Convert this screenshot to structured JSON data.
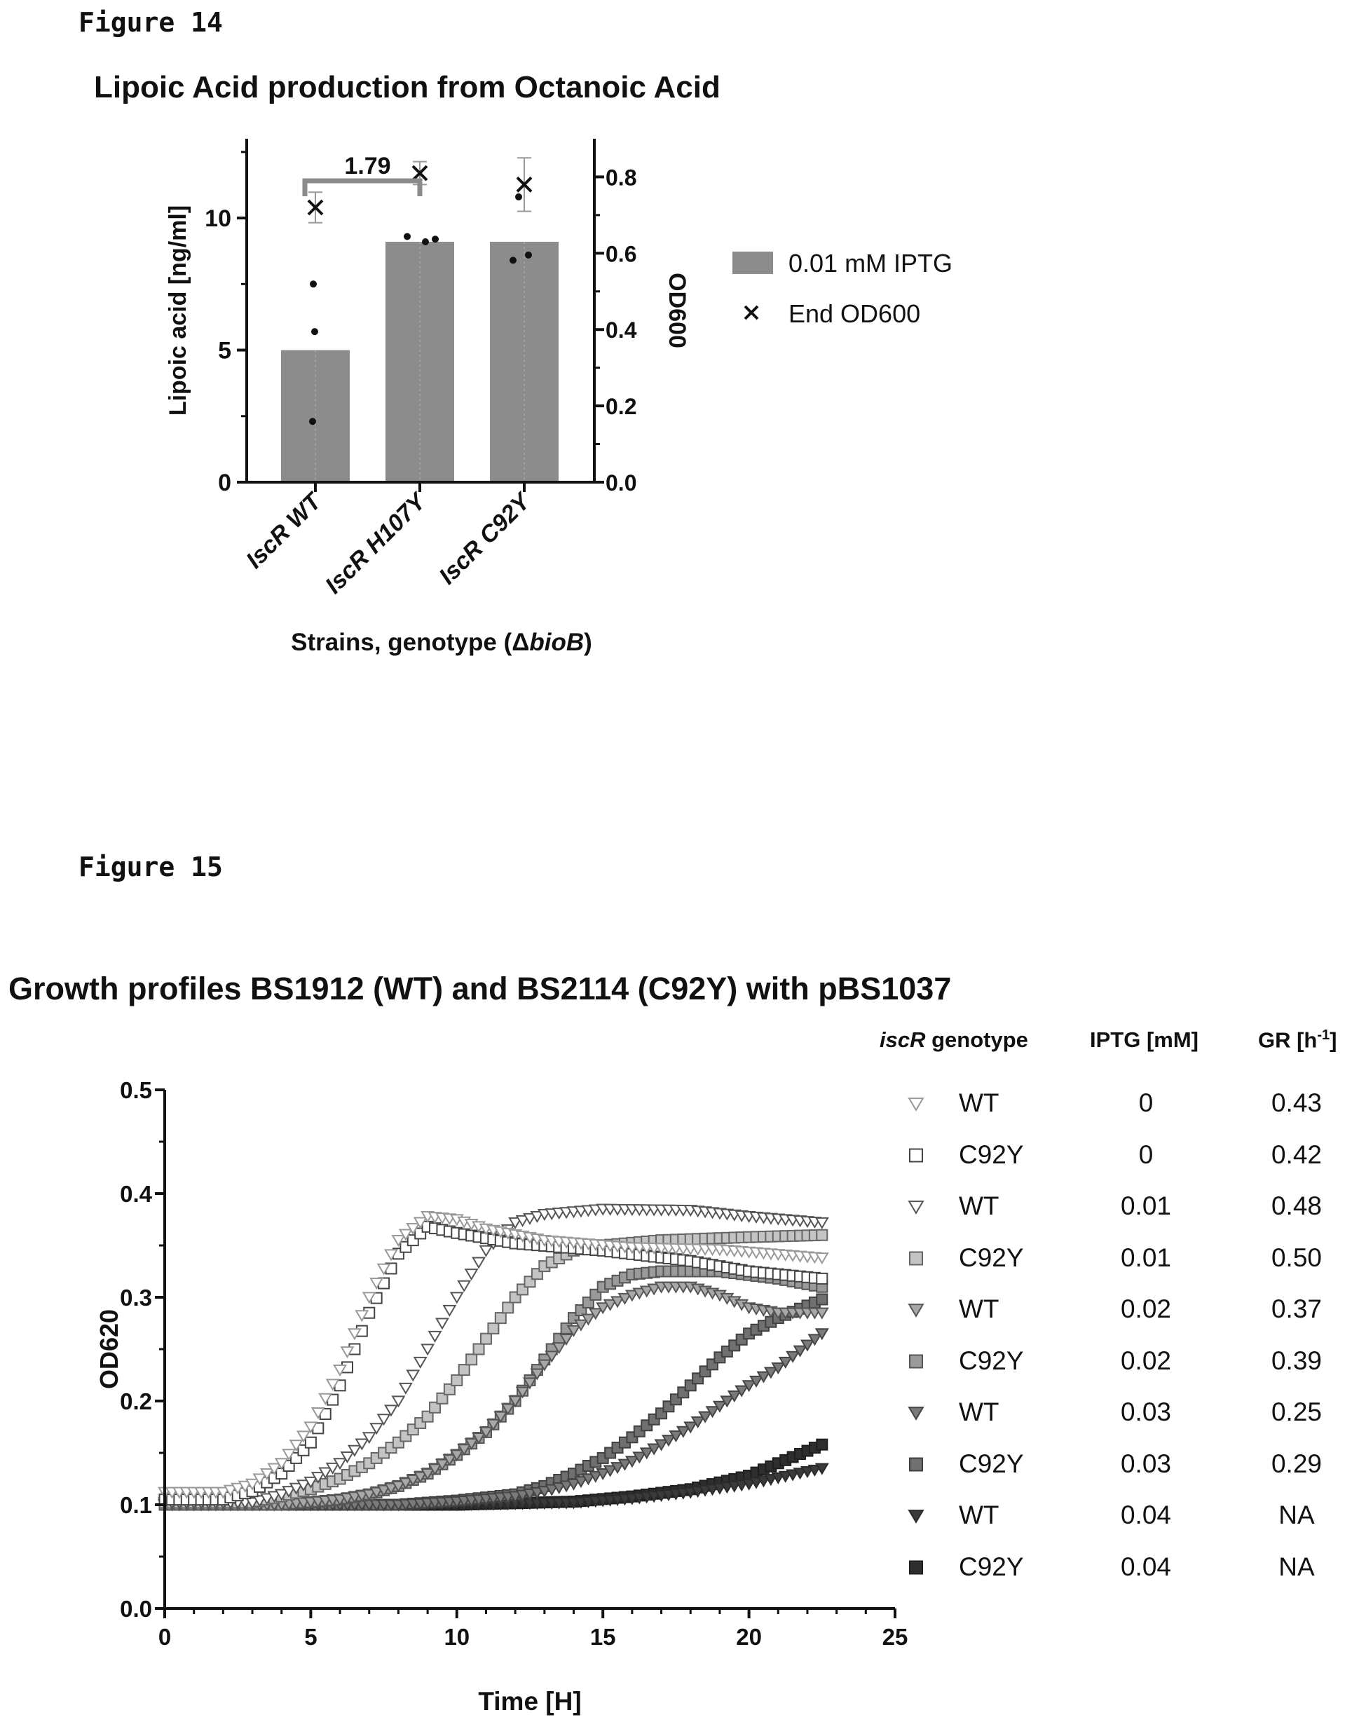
{
  "figure14": {
    "label": "Figure 14",
    "chart_data": {
      "type": "bar",
      "title": "Lipoic Acid production from Octanoic Acid",
      "xlabel_prefix": "Strains, genotype (Δ",
      "xlabel_italic": "bioB",
      "xlabel_suffix": ")",
      "ylabel": "Lipoic acid [ng/ml]",
      "y2label": "OD600",
      "ylim": [
        0,
        13
      ],
      "y_ticks": [
        0,
        5,
        10
      ],
      "y2lim": [
        0,
        0.9
      ],
      "y2_ticks": [
        "0.0",
        "0.2",
        "0.4",
        "0.6",
        "0.8"
      ],
      "categories": [
        "IscR WT",
        "IscR H107Y",
        "IscR C92Y"
      ],
      "series": [
        {
          "name": "0.01 mM IPTG",
          "type": "bar",
          "axis": "left",
          "values": [
            5.0,
            9.1,
            9.1
          ],
          "points": [
            [
              7.5,
              5.7,
              2.3
            ],
            [
              9.3,
              9.1,
              9.2
            ],
            [
              10.8,
              8.4,
              8.6
            ]
          ]
        },
        {
          "name": "End OD600",
          "type": "marker",
          "axis": "right",
          "values": [
            0.72,
            0.81,
            0.78
          ],
          "errors": [
            0.04,
            0.03,
            0.07
          ]
        }
      ],
      "annotations": [
        {
          "text": "1.79",
          "from": 0,
          "to": 1
        }
      ],
      "legend": "right",
      "colors": {
        "bar": "#8c8c8c",
        "bracket": "#8a8a8a",
        "annotation": "#7a7a7a"
      }
    }
  },
  "figure15": {
    "label": "Figure 15",
    "chart_data": {
      "type": "scatter",
      "title": "Growth profiles BS1912 (WT) and BS2114 (C92Y) with pBS1037",
      "xlabel": "Time [H]",
      "ylabel": "OD620",
      "xlim": [
        0,
        25
      ],
      "ylim": [
        0,
        0.5
      ],
      "x_ticks": [
        "0",
        "5",
        "10",
        "15",
        "20",
        "25"
      ],
      "y_ticks": [
        "0.0",
        "0.1",
        "0.2",
        "0.3",
        "0.4",
        "0.5"
      ],
      "x_end": 22.5,
      "x_step": 0.25,
      "series": [
        {
          "genotype": "WT",
          "iptg": "0",
          "gr": "0.43",
          "shape": "tri-down",
          "fill": "#ffffff",
          "stroke": "#999999",
          "curve": [
            [
              0,
              0.112
            ],
            [
              2,
              0.112
            ],
            [
              3,
              0.12
            ],
            [
              4,
              0.14
            ],
            [
              5,
              0.175
            ],
            [
              6,
              0.23
            ],
            [
              7,
              0.3
            ],
            [
              8,
              0.355
            ],
            [
              9,
              0.378
            ],
            [
              10,
              0.375
            ],
            [
              11,
              0.366
            ],
            [
              13,
              0.355
            ],
            [
              16,
              0.348
            ],
            [
              19,
              0.346
            ],
            [
              22.5,
              0.338
            ]
          ]
        },
        {
          "genotype": "C92Y",
          "iptg": "0",
          "gr": "0.42",
          "shape": "square",
          "fill": "#ffffff",
          "stroke": "#444444",
          "curve": [
            [
              0,
              0.105
            ],
            [
              2,
              0.105
            ],
            [
              3,
              0.113
            ],
            [
              4,
              0.13
            ],
            [
              5,
              0.16
            ],
            [
              6,
              0.215
            ],
            [
              7,
              0.285
            ],
            [
              8,
              0.342
            ],
            [
              9,
              0.368
            ],
            [
              10,
              0.362
            ],
            [
              12,
              0.352
            ],
            [
              15,
              0.345
            ],
            [
              18,
              0.335
            ],
            [
              20,
              0.325
            ],
            [
              22.5,
              0.318
            ]
          ]
        },
        {
          "genotype": "WT",
          "iptg": "0.01",
          "gr": "0.48",
          "shape": "tri-down",
          "fill": "#ffffff",
          "stroke": "#555555",
          "curve": [
            [
              0,
              0.102
            ],
            [
              3,
              0.102
            ],
            [
              4,
              0.11
            ],
            [
              5,
              0.122
            ],
            [
              6,
              0.14
            ],
            [
              7,
              0.165
            ],
            [
              8,
              0.2
            ],
            [
              9,
              0.25
            ],
            [
              10,
              0.3
            ],
            [
              11,
              0.345
            ],
            [
              12,
              0.372
            ],
            [
              13,
              0.38
            ],
            [
              15,
              0.385
            ],
            [
              18,
              0.384
            ],
            [
              20,
              0.378
            ],
            [
              22.5,
              0.372
            ]
          ]
        },
        {
          "genotype": "C92Y",
          "iptg": "0.01",
          "gr": "0.50",
          "shape": "square",
          "fill": "#c4c4c4",
          "stroke": "#666666",
          "curve": [
            [
              0,
              0.102
            ],
            [
              3,
              0.102
            ],
            [
              4,
              0.108
            ],
            [
              5,
              0.115
            ],
            [
              6,
              0.125
            ],
            [
              7,
              0.14
            ],
            [
              8,
              0.16
            ],
            [
              9,
              0.185
            ],
            [
              10,
              0.22
            ],
            [
              11,
              0.26
            ],
            [
              12,
              0.3
            ],
            [
              13,
              0.33
            ],
            [
              14,
              0.345
            ],
            [
              15,
              0.35
            ],
            [
              17,
              0.355
            ],
            [
              20,
              0.358
            ],
            [
              22.5,
              0.36
            ]
          ]
        },
        {
          "genotype": "WT",
          "iptg": "0.02",
          "gr": "0.37",
          "shape": "tri-down",
          "fill": "#a8a8a8",
          "stroke": "#555555",
          "curve": [
            [
              0,
              0.1
            ],
            [
              4,
              0.1
            ],
            [
              6,
              0.105
            ],
            [
              7,
              0.11
            ],
            [
              8,
              0.118
            ],
            [
              9,
              0.13
            ],
            [
              10,
              0.148
            ],
            [
              11,
              0.17
            ],
            [
              12,
              0.2
            ],
            [
              13,
              0.235
            ],
            [
              14,
              0.268
            ],
            [
              15,
              0.29
            ],
            [
              16,
              0.302
            ],
            [
              17,
              0.31
            ],
            [
              18,
              0.31
            ],
            [
              19,
              0.302
            ],
            [
              20,
              0.29
            ],
            [
              21,
              0.285
            ],
            [
              22.5,
              0.285
            ]
          ]
        },
        {
          "genotype": "C92Y",
          "iptg": "0.02",
          "gr": "0.39",
          "shape": "square",
          "fill": "#9a9a9a",
          "stroke": "#555555",
          "curve": [
            [
              0,
              0.1
            ],
            [
              4,
              0.1
            ],
            [
              6,
              0.105
            ],
            [
              7,
              0.11
            ],
            [
              8,
              0.118
            ],
            [
              9,
              0.13
            ],
            [
              10,
              0.148
            ],
            [
              11,
              0.17
            ],
            [
              12,
              0.2
            ],
            [
              13,
              0.24
            ],
            [
              14,
              0.28
            ],
            [
              15,
              0.31
            ],
            [
              16,
              0.322
            ],
            [
              17,
              0.325
            ],
            [
              19,
              0.325
            ],
            [
              21,
              0.318
            ],
            [
              22.5,
              0.31
            ]
          ]
        },
        {
          "genotype": "WT",
          "iptg": "0.03",
          "gr": "0.25",
          "shape": "tri-down",
          "fill": "#7a7a7a",
          "stroke": "#444444",
          "curve": [
            [
              0,
              0.1
            ],
            [
              8,
              0.1
            ],
            [
              10,
              0.103
            ],
            [
              12,
              0.108
            ],
            [
              13,
              0.113
            ],
            [
              14,
              0.12
            ],
            [
              15,
              0.13
            ],
            [
              16,
              0.142
            ],
            [
              17,
              0.158
            ],
            [
              18,
              0.175
            ],
            [
              19,
              0.195
            ],
            [
              20,
              0.215
            ],
            [
              21,
              0.232
            ],
            [
              22.5,
              0.265
            ]
          ]
        },
        {
          "genotype": "C92Y",
          "iptg": "0.03",
          "gr": "0.29",
          "shape": "square",
          "fill": "#707070",
          "stroke": "#404040",
          "curve": [
            [
              0,
              0.1
            ],
            [
              8,
              0.1
            ],
            [
              10,
              0.104
            ],
            [
              12,
              0.11
            ],
            [
              13,
              0.118
            ],
            [
              14,
              0.13
            ],
            [
              15,
              0.145
            ],
            [
              16,
              0.165
            ],
            [
              17,
              0.188
            ],
            [
              18,
              0.215
            ],
            [
              19,
              0.242
            ],
            [
              20,
              0.265
            ],
            [
              21,
              0.28
            ],
            [
              22.5,
              0.298
            ]
          ]
        },
        {
          "genotype": "WT",
          "iptg": "0.04",
          "gr": "NA",
          "shape": "tri-down",
          "fill": "#3a3a3a",
          "stroke": "#2a2a2a",
          "curve": [
            [
              0,
              0.1
            ],
            [
              10,
              0.1
            ],
            [
              14,
              0.102
            ],
            [
              16,
              0.106
            ],
            [
              18,
              0.112
            ],
            [
              20,
              0.12
            ],
            [
              21,
              0.126
            ],
            [
              22.5,
              0.135
            ]
          ]
        },
        {
          "genotype": "C92Y",
          "iptg": "0.04",
          "gr": "NA",
          "shape": "square",
          "fill": "#2e2e2e",
          "stroke": "#1e1e1e",
          "curve": [
            [
              0,
              0.1
            ],
            [
              10,
              0.1
            ],
            [
              14,
              0.103
            ],
            [
              16,
              0.108
            ],
            [
              18,
              0.115
            ],
            [
              20,
              0.128
            ],
            [
              21,
              0.14
            ],
            [
              22.5,
              0.158
            ]
          ]
        }
      ],
      "table_headers": {
        "genotype_italic": "iscR",
        "genotype_rest": " genotype",
        "iptg": "IPTG [mM]",
        "gr_base": "GR [h",
        "gr_sup": "-1",
        "gr_close": "]"
      }
    }
  }
}
